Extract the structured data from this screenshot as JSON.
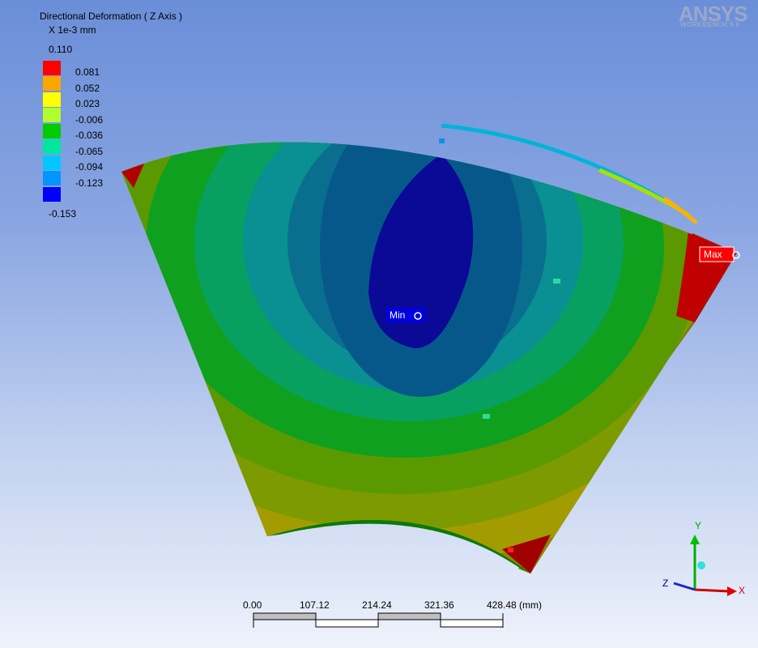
{
  "legend": {
    "title": "Directional Deformation ( Z Axis )",
    "units": "X 1e-3 mm",
    "max_value": "0.110",
    "min_value": "-0.153",
    "bands": [
      {
        "label": "0.081",
        "color": "#ff0000"
      },
      {
        "label": "0.052",
        "color": "#ffa500"
      },
      {
        "label": "0.023",
        "color": "#ffff00"
      },
      {
        "label": "-0.006",
        "color": "#adff2f"
      },
      {
        "label": "-0.036",
        "color": "#00cc00"
      },
      {
        "label": "-0.065",
        "color": "#00e6a0"
      },
      {
        "label": "-0.094",
        "color": "#00c8ff"
      },
      {
        "label": "-0.123",
        "color": "#0096ff"
      },
      {
        "label": "",
        "color": "#0000ff"
      }
    ]
  },
  "logo": {
    "brand": "ANSYS",
    "product": "WORKBENCH 9.0"
  },
  "probes": {
    "max_label": "Max",
    "min_label": "Min"
  },
  "scale_bar": {
    "labels": [
      "0.00",
      "107.12",
      "214.24",
      "321.36",
      "428.48 (mm)"
    ]
  },
  "triad": {
    "x": "X",
    "y": "Y",
    "z": "Z"
  }
}
